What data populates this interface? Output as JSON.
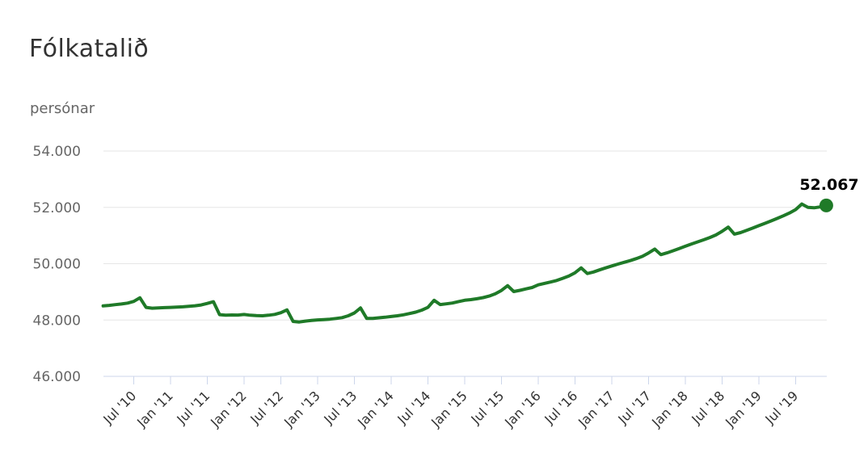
{
  "page": {
    "background": "#ffffff"
  },
  "header": {
    "title": "Fólkatalið",
    "subtitle": "persónar"
  },
  "chart_data": {
    "type": "line",
    "title": "Fólkatalið",
    "ylabel": "persónar",
    "unit": "persónar",
    "grid": true,
    "legend": "none",
    "ylim": [
      46000,
      54000
    ],
    "y_tick_values": [
      46000,
      48000,
      50000,
      52000,
      54000
    ],
    "y_tick_labels": [
      "46.000",
      "48.000",
      "50.000",
      "52.000",
      "54.000"
    ],
    "x_tick_labels": [
      "Jul '10",
      "Jan '11",
      "Jul '11",
      "Jan '12",
      "Jul '12",
      "Jan '13",
      "Jul '13",
      "Jan '14",
      "Jul '14",
      "Jan '15",
      "Jul '15",
      "Jan '16",
      "Jul '16",
      "Jan '17",
      "Jul '17",
      "Jan '18",
      "Jul '18",
      "Jan '19",
      "Jul '19"
    ],
    "x_start": "2010-02",
    "x_end": "2019-12",
    "x_interval": "month",
    "series": [
      {
        "name": "Fólkatalið",
        "values": [
          48500,
          48520,
          48545,
          48570,
          48600,
          48660,
          48790,
          48450,
          48420,
          48430,
          48440,
          48450,
          48460,
          48470,
          48485,
          48505,
          48535,
          48590,
          48650,
          48190,
          48170,
          48180,
          48175,
          48195,
          48170,
          48155,
          48150,
          48170,
          48200,
          48260,
          48360,
          47950,
          47930,
          47960,
          47985,
          48005,
          48015,
          48030,
          48055,
          48085,
          48150,
          48250,
          48430,
          48060,
          48055,
          48080,
          48100,
          48125,
          48150,
          48185,
          48230,
          48280,
          48350,
          48450,
          48700,
          48550,
          48575,
          48605,
          48655,
          48700,
          48725,
          48755,
          48795,
          48850,
          48930,
          49050,
          49220,
          49010,
          49055,
          49105,
          49155,
          49250,
          49300,
          49350,
          49405,
          49480,
          49560,
          49680,
          49850,
          49650,
          49705,
          49780,
          49850,
          49920,
          49985,
          50050,
          50110,
          50180,
          50260,
          50380,
          50520,
          50320,
          50385,
          50460,
          50540,
          50620,
          50700,
          50775,
          50850,
          50930,
          51020,
          51150,
          51300,
          51050,
          51105,
          51185,
          51265,
          51350,
          51435,
          51520,
          51610,
          51700,
          51800,
          51920,
          52120,
          52000,
          51985,
          52015,
          52067
        ]
      }
    ],
    "last_point_value": 52067,
    "last_point_label": "52.067",
    "colors": {
      "line": "#1f7a28",
      "marker": "#1f7a28",
      "grid": "#e6e6e6",
      "axis": "#ccd6eb",
      "title": "#333333",
      "subtitle": "#666666",
      "y_labels": "#666666",
      "x_labels": "#333333",
      "data_label": "#000000"
    }
  }
}
